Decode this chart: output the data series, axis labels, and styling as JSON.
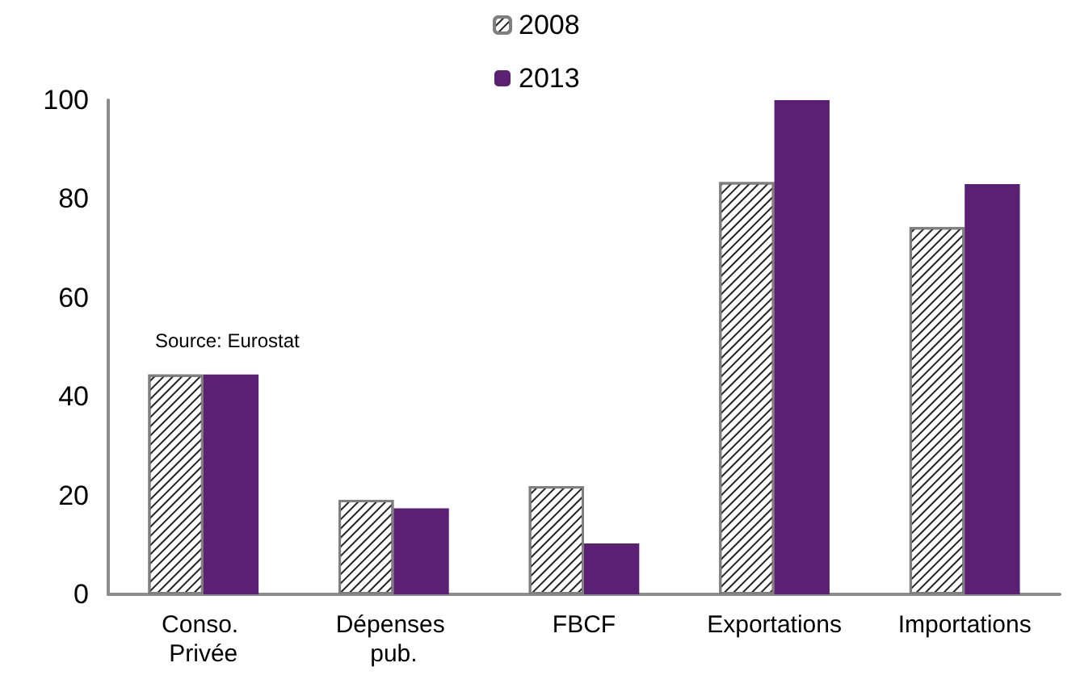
{
  "chart_data": {
    "type": "bar",
    "categories": [
      "Conso. Privée",
      "Dépenses pub.",
      "FBCF",
      "Exportations",
      "Importations"
    ],
    "series": [
      {
        "name": "2008",
        "color": "#ffffff",
        "values": [
          44.5,
          19.1,
          21.9,
          83.4,
          74.3
        ]
      },
      {
        "name": "2013",
        "color": "#5b1f73",
        "values": [
          44.5,
          17.4,
          10.3,
          100,
          83.0
        ]
      }
    ],
    "ylim": [
      0,
      100
    ],
    "yticks": [
      0,
      20,
      40,
      60,
      80,
      100
    ],
    "grid": false,
    "legend": "top",
    "annotations": [
      "Source: Eurostat"
    ]
  }
}
